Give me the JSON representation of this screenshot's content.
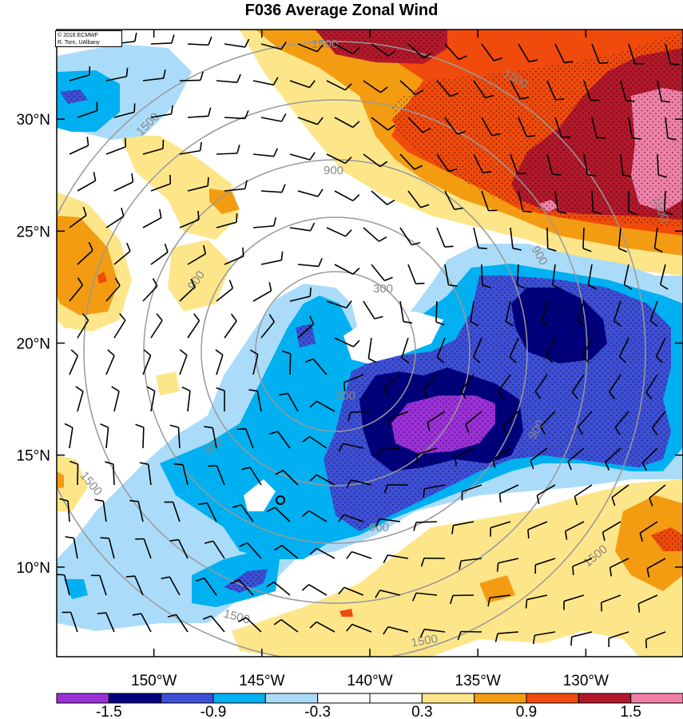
{
  "title": "F036 Average Zonal Wind",
  "credit": {
    "line1": "© 2016 ECMWF",
    "line2": "R. Torn, UAlbany"
  },
  "map": {
    "lon_range": [
      -154.5,
      -125.5
    ],
    "lat_range": [
      6,
      34
    ],
    "lon_ticks": [
      {
        "value": -150,
        "label": "150°W"
      },
      {
        "value": -145,
        "label": "145°W"
      },
      {
        "value": -140,
        "label": "140°W"
      },
      {
        "value": -135,
        "label": "135°W"
      },
      {
        "value": -130,
        "label": "130°W"
      }
    ],
    "lat_ticks": [
      {
        "value": 10,
        "label": "10°N"
      },
      {
        "value": 15,
        "label": "15°N"
      },
      {
        "value": 20,
        "label": "20°N"
      },
      {
        "value": 25,
        "label": "25°N"
      },
      {
        "value": 30,
        "label": "30°N"
      }
    ],
    "storm_center": {
      "lon": -143.5,
      "lat": 13
    },
    "range_rings_km": [
      300,
      900,
      1500
    ],
    "ring_label_300": "300",
    "ring_label_900": "900",
    "ring_label_1500": "1500"
  },
  "colorbar": {
    "colors": [
      "#9b30d8",
      "#00007f",
      "#3d4fd6",
      "#00b0f0",
      "#aadcfa",
      "#ffffff",
      "#ffffff",
      "#fde68a",
      "#f39c12",
      "#f04a0c",
      "#b2182b",
      "#f080a8"
    ],
    "labels": [
      "-1.5",
      "-0.9",
      "-0.3",
      "0.3",
      "0.9",
      "1.5"
    ]
  },
  "colors": {
    "ring": "#999999",
    "barb": "#000000"
  }
}
